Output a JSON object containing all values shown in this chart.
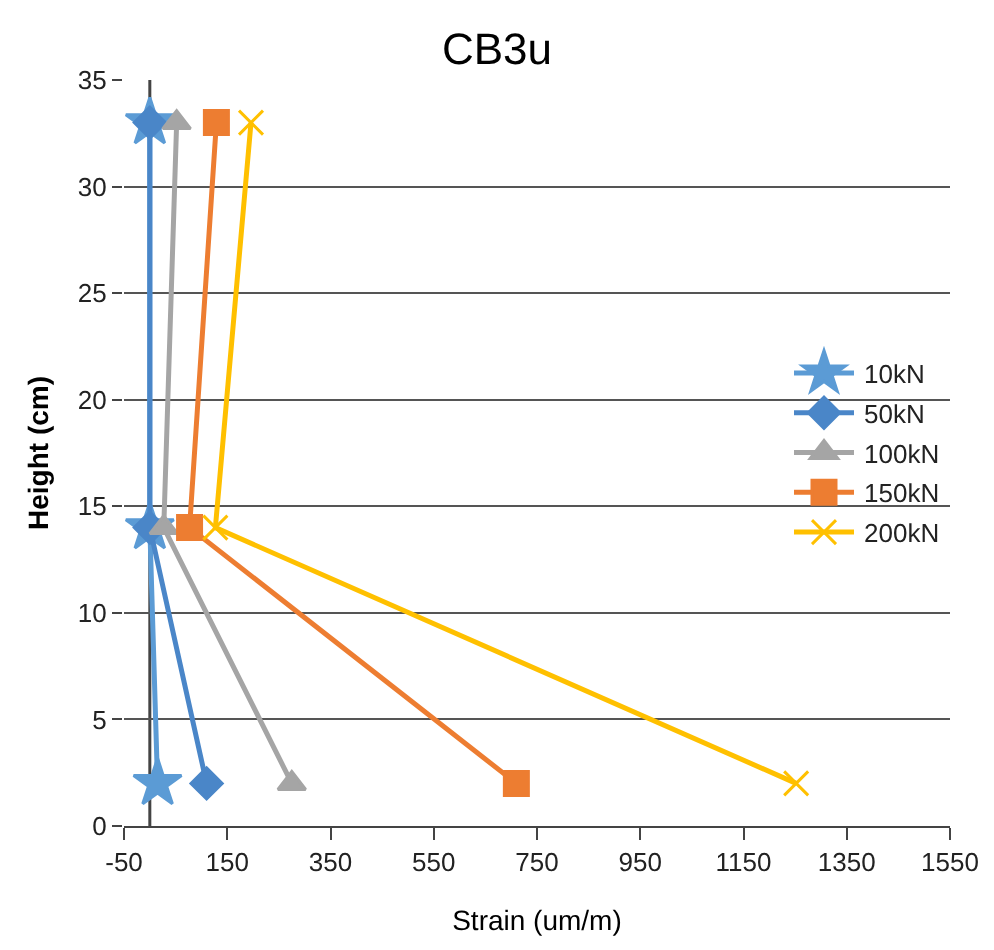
{
  "chart_data": {
    "type": "line",
    "title": "CB3u",
    "xlabel": "Strain (um/m)",
    "ylabel": "Height (cm)",
    "series": [
      {
        "name": "10kN",
        "color": "#5b9bd5",
        "marker": "star",
        "x": [
          15,
          0,
          0
        ],
        "values": [
          2,
          14,
          33
        ]
      },
      {
        "name": "50kN",
        "color": "#4a86c8",
        "marker": "diamond",
        "x": [
          110,
          0,
          0
        ],
        "values": [
          2,
          14,
          33
        ]
      },
      {
        "name": "100kN",
        "color": "#a5a5a5",
        "marker": "triangle",
        "x": [
          275,
          27,
          52
        ],
        "values": [
          2,
          14,
          33
        ]
      },
      {
        "name": "150kN",
        "color": "#ed7d31",
        "marker": "square",
        "x": [
          710,
          77,
          129
        ],
        "values": [
          2,
          14,
          33
        ]
      },
      {
        "name": "200kN",
        "color": "#ffc000",
        "marker": "cross",
        "x": [
          1252,
          127,
          196
        ],
        "values": [
          2,
          14,
          33
        ]
      }
    ],
    "xlim": [
      -50,
      1550
    ],
    "xticks": [
      -50,
      150,
      350,
      550,
      750,
      950,
      1150,
      1350,
      1550
    ],
    "ylim": [
      0,
      35
    ],
    "yticks": [
      0,
      5,
      10,
      15,
      20,
      25,
      30,
      35
    ],
    "grid": "y",
    "legend": "right",
    "line_style": "solid"
  }
}
